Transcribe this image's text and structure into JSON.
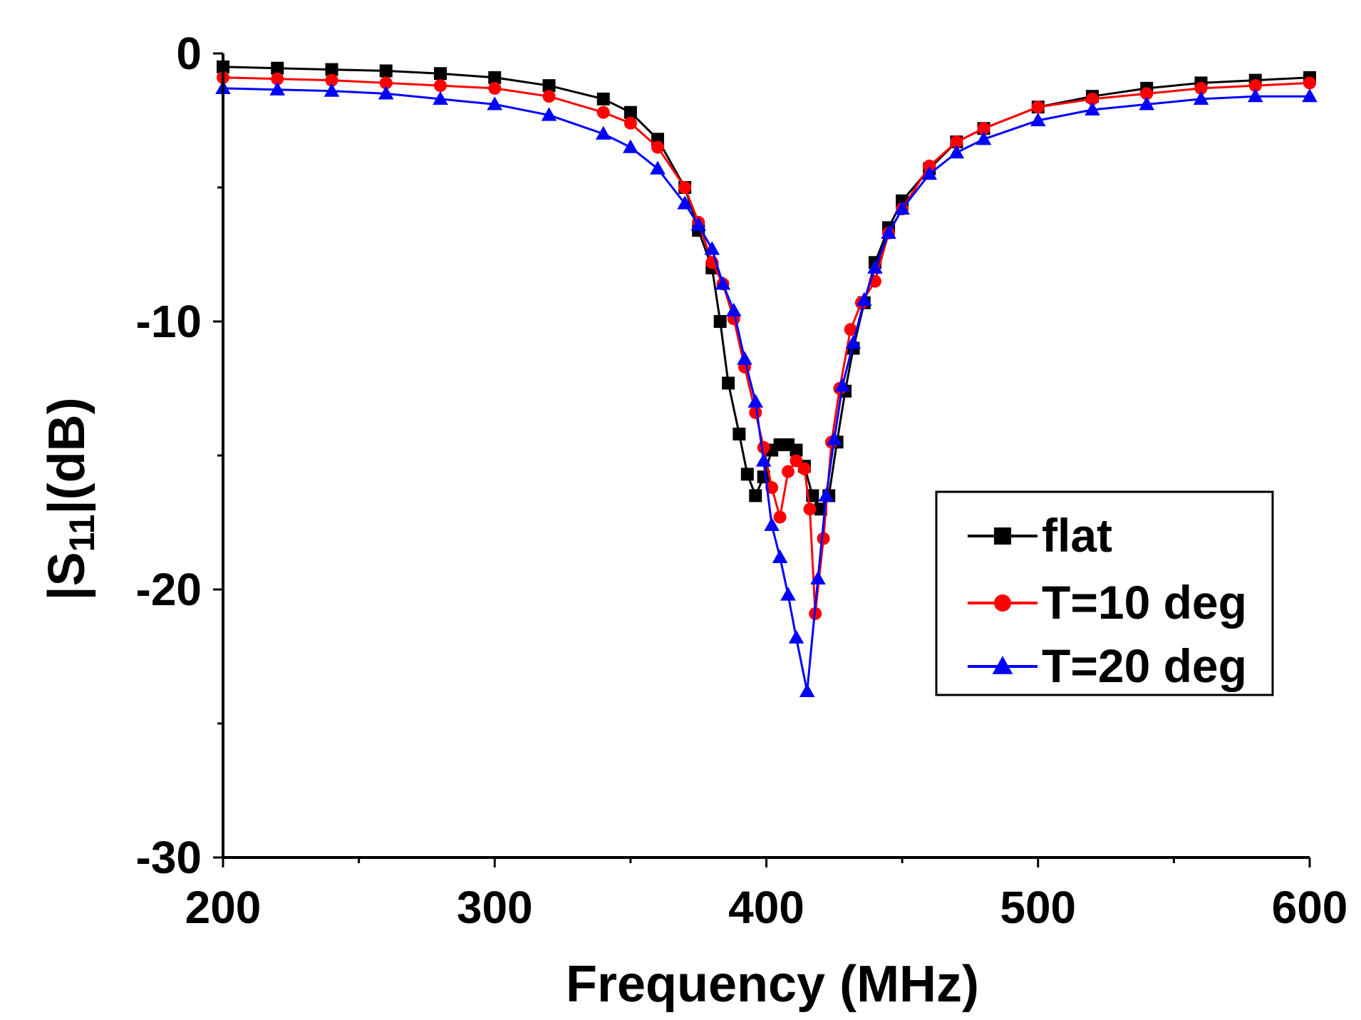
{
  "chart_data": {
    "type": "line",
    "title": "",
    "xlabel": "Frequency (MHz)",
    "ylabel_main": "|S",
    "ylabel_sub": "11",
    "ylabel_tail": "|(dB)",
    "xlim": [
      200,
      600
    ],
    "ylim": [
      -30,
      0
    ],
    "x_ticks": [
      200,
      300,
      400,
      500,
      600
    ],
    "x_tick_labels": [
      "200",
      "300",
      "400",
      "500",
      "600"
    ],
    "y_ticks": [
      0,
      -10,
      -20,
      -30
    ],
    "y_tick_labels": [
      "0",
      "-10",
      "-20",
      "-30"
    ],
    "x_minor_step": 50,
    "y_minor_step": 5,
    "legend_position": "lower-right",
    "series": [
      {
        "name": "flat",
        "color": "#000000",
        "marker": "square",
        "points": [
          [
            200,
            -0.5
          ],
          [
            220,
            -0.55
          ],
          [
            240,
            -0.6
          ],
          [
            260,
            -0.65
          ],
          [
            280,
            -0.75
          ],
          [
            300,
            -0.9
          ],
          [
            320,
            -1.2
          ],
          [
            340,
            -1.7
          ],
          [
            350,
            -2.2
          ],
          [
            360,
            -3.2
          ],
          [
            370,
            -5.0
          ],
          [
            375,
            -6.6
          ],
          [
            380,
            -8.0
          ],
          [
            383,
            -10.0
          ],
          [
            386,
            -12.3
          ],
          [
            390,
            -14.2
          ],
          [
            393,
            -15.7
          ],
          [
            396,
            -16.5
          ],
          [
            399,
            -15.8
          ],
          [
            402,
            -14.8
          ],
          [
            405,
            -14.6
          ],
          [
            408,
            -14.6
          ],
          [
            411,
            -14.8
          ],
          [
            414,
            -15.4
          ],
          [
            417,
            -16.5
          ],
          [
            420,
            -17.0
          ],
          [
            423,
            -16.5
          ],
          [
            426,
            -14.5
          ],
          [
            429,
            -12.6
          ],
          [
            432,
            -11.0
          ],
          [
            436,
            -9.3
          ],
          [
            440,
            -7.8
          ],
          [
            445,
            -6.5
          ],
          [
            450,
            -5.5
          ],
          [
            460,
            -4.3
          ],
          [
            470,
            -3.3
          ],
          [
            480,
            -2.8
          ],
          [
            500,
            -2.0
          ],
          [
            520,
            -1.6
          ],
          [
            540,
            -1.3
          ],
          [
            560,
            -1.1
          ],
          [
            580,
            -1.0
          ],
          [
            600,
            -0.9
          ]
        ]
      },
      {
        "name": "T=10 deg",
        "color": "#ff0000",
        "marker": "circle",
        "points": [
          [
            200,
            -0.9
          ],
          [
            220,
            -0.95
          ],
          [
            240,
            -1.0
          ],
          [
            260,
            -1.1
          ],
          [
            280,
            -1.2
          ],
          [
            300,
            -1.3
          ],
          [
            320,
            -1.6
          ],
          [
            340,
            -2.2
          ],
          [
            350,
            -2.6
          ],
          [
            360,
            -3.5
          ],
          [
            370,
            -5.0
          ],
          [
            375,
            -6.3
          ],
          [
            380,
            -7.8
          ],
          [
            384,
            -8.6
          ],
          [
            388,
            -9.9
          ],
          [
            392,
            -11.7
          ],
          [
            396,
            -13.4
          ],
          [
            399,
            -14.7
          ],
          [
            402,
            -16.2
          ],
          [
            405,
            -17.3
          ],
          [
            408,
            -15.6
          ],
          [
            411,
            -15.2
          ],
          [
            414,
            -15.5
          ],
          [
            416,
            -17.0
          ],
          [
            418,
            -20.9
          ],
          [
            421,
            -18.1
          ],
          [
            424,
            -14.5
          ],
          [
            427,
            -12.5
          ],
          [
            431,
            -10.3
          ],
          [
            435,
            -9.3
          ],
          [
            440,
            -8.5
          ],
          [
            445,
            -6.7
          ],
          [
            450,
            -5.8
          ],
          [
            460,
            -4.2
          ],
          [
            470,
            -3.3
          ],
          [
            480,
            -2.8
          ],
          [
            500,
            -2.0
          ],
          [
            520,
            -1.7
          ],
          [
            540,
            -1.5
          ],
          [
            560,
            -1.3
          ],
          [
            580,
            -1.2
          ],
          [
            600,
            -1.1
          ]
        ]
      },
      {
        "name": "T=20 deg",
        "color": "#0000ff",
        "marker": "triangle",
        "points": [
          [
            200,
            -1.3
          ],
          [
            220,
            -1.35
          ],
          [
            240,
            -1.4
          ],
          [
            260,
            -1.5
          ],
          [
            280,
            -1.7
          ],
          [
            300,
            -1.9
          ],
          [
            320,
            -2.3
          ],
          [
            340,
            -3.0
          ],
          [
            350,
            -3.5
          ],
          [
            360,
            -4.3
          ],
          [
            370,
            -5.6
          ],
          [
            375,
            -6.4
          ],
          [
            380,
            -7.3
          ],
          [
            384,
            -8.6
          ],
          [
            388,
            -9.6
          ],
          [
            392,
            -11.4
          ],
          [
            396,
            -13.0
          ],
          [
            399,
            -15.2
          ],
          [
            402,
            -17.6
          ],
          [
            405,
            -18.8
          ],
          [
            408,
            -20.2
          ],
          [
            411,
            -21.8
          ],
          [
            415,
            -23.8
          ],
          [
            419,
            -19.6
          ],
          [
            422,
            -16.5
          ],
          [
            425,
            -14.4
          ],
          [
            428,
            -12.4
          ],
          [
            432,
            -10.8
          ],
          [
            436,
            -9.2
          ],
          [
            440,
            -8.0
          ],
          [
            445,
            -6.7
          ],
          [
            450,
            -5.8
          ],
          [
            460,
            -4.5
          ],
          [
            470,
            -3.7
          ],
          [
            480,
            -3.2
          ],
          [
            500,
            -2.5
          ],
          [
            520,
            -2.1
          ],
          [
            540,
            -1.9
          ],
          [
            560,
            -1.7
          ],
          [
            580,
            -1.6
          ],
          [
            600,
            -1.6
          ]
        ]
      }
    ]
  }
}
